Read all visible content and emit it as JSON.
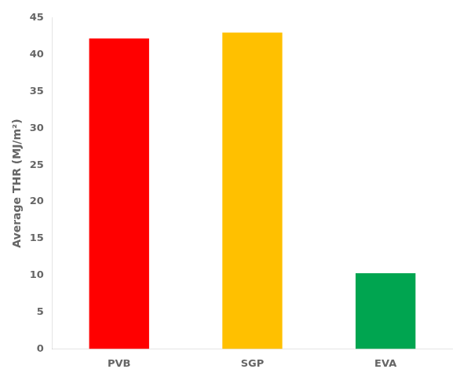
{
  "chart_data": {
    "type": "bar",
    "categories": [
      "PVB",
      "SGP",
      "EVA"
    ],
    "values": [
      42.2,
      43.0,
      10.3
    ],
    "colors": [
      "#ff0000",
      "#ffc000",
      "#00a550"
    ],
    "ylabel": "Average THR (MJ/m²)",
    "ylim": [
      0,
      45
    ],
    "yticks": [
      0,
      5,
      10,
      15,
      20,
      25,
      30,
      35,
      40,
      45
    ],
    "grid": false
  }
}
